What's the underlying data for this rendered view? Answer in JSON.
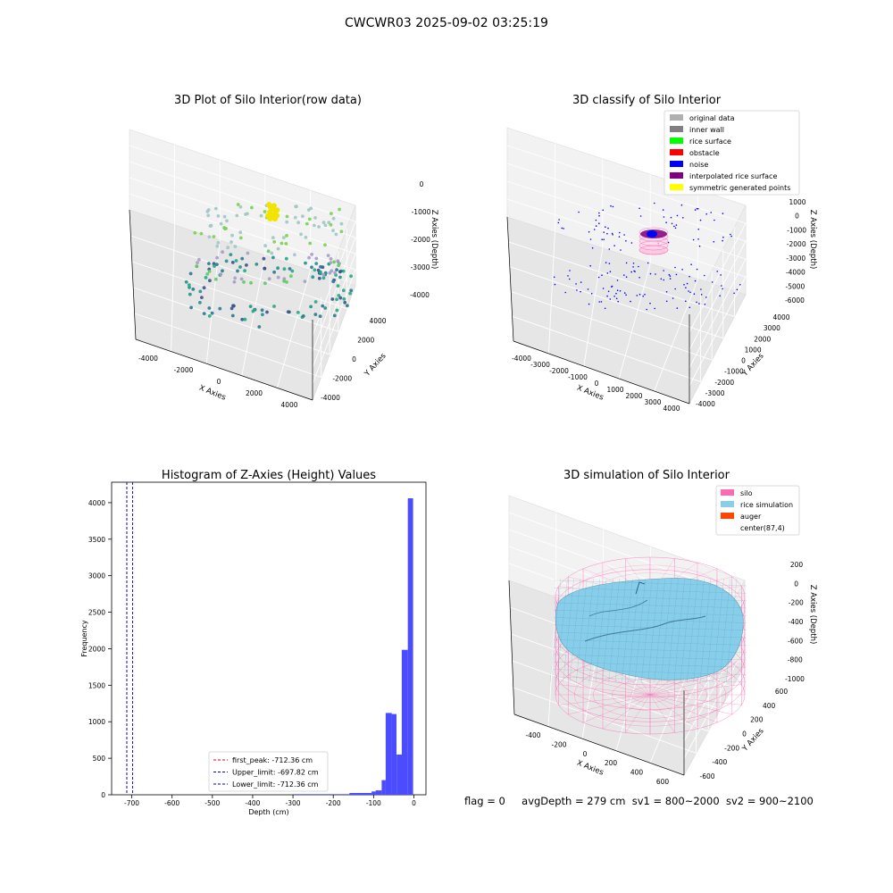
{
  "figure_title": "CWCWR03 2025-09-02 03:25:19",
  "footer": {
    "flag": "flag = 0",
    "avg_depth": "avgDepth = 279 cm",
    "sv1": "sv1 = 800~2000",
    "sv2": "sv2 = 900~2100"
  },
  "colors": {
    "hist_bar": "#4c4cff",
    "first_peak": "#e4001b",
    "limits": "#0000cc",
    "silo": "#ff69b4",
    "rice": "#87ceeb",
    "noise": "#0000ff",
    "interp": "#800080"
  },
  "chart_data": [
    {
      "type": "scatter",
      "projection": "3d",
      "title": "3D Plot of Silo Interior(row data)",
      "xlabel": "X Axies",
      "ylabel": "Y Axies",
      "zlabel": "Z Axies (Depth)",
      "x_ticks": [
        "-4000",
        "-2000",
        "0",
        "2000",
        "4000"
      ],
      "y_ticks": [
        "-4000",
        "-2000",
        "0",
        "2000",
        "4000"
      ],
      "z_ticks": [
        "0",
        "-1000",
        "-2000",
        "-3000",
        "-4000"
      ],
      "xlim": [
        -4500,
        4500
      ],
      "ylim": [
        -4500,
        4500
      ],
      "zlim": [
        -4300,
        200
      ],
      "colormap": "viridis-like (lighter = shallower)",
      "description_points": "approx. 250 points on silo wall and surface"
    },
    {
      "type": "scatter",
      "projection": "3d",
      "title": "3D classify of Silo Interior",
      "xlabel": "X Axies",
      "ylabel": "Y Axies",
      "zlabel": "Z Axies (Depth)",
      "x_ticks": [
        "-4000",
        "-3000",
        "-2000",
        "-1000",
        "0",
        "1000",
        "2000",
        "3000",
        "4000"
      ],
      "y_ticks": [
        "-4000",
        "-3000",
        "-2000",
        "-1000",
        "0",
        "1000",
        "2000",
        "3000",
        "4000"
      ],
      "z_ticks": [
        "1000",
        "0",
        "-1000",
        "-2000",
        "-3000",
        "-4000",
        "-5000",
        "-6000"
      ],
      "legend_position": "upper right",
      "legend": [
        {
          "label": "original data",
          "color": "#b0b0b0"
        },
        {
          "label": "inner wall",
          "color": "#808080"
        },
        {
          "label": "rice surface",
          "color": "#00ff00"
        },
        {
          "label": "obstacle",
          "color": "#ff0000"
        },
        {
          "label": "noise",
          "color": "#0000ff"
        },
        {
          "label": "interpolated rice surface",
          "color": "#800080"
        },
        {
          "label": "symmetric generated points",
          "color": "#ffff00"
        }
      ]
    },
    {
      "type": "bar",
      "title": "Histogram of Z-Axies (Height) Values",
      "xlabel": "Depth (cm)",
      "ylabel": "Frequency",
      "xlim": [
        -750,
        30
      ],
      "ylim": [
        0,
        4280
      ],
      "x_ticks": [
        -700,
        -600,
        -500,
        -400,
        -300,
        -200,
        -100,
        0
      ],
      "y_ticks": [
        0,
        500,
        1000,
        1500,
        2000,
        2500,
        3000,
        3500,
        4000
      ],
      "bins": [
        {
          "x0": -300,
          "x1": -160,
          "count": 8
        },
        {
          "x0": -160,
          "x1": -105,
          "count": 25
        },
        {
          "x0": -105,
          "x1": -95,
          "count": 45
        },
        {
          "x0": -95,
          "x1": -80,
          "count": 60
        },
        {
          "x0": -80,
          "x1": -70,
          "count": 200
        },
        {
          "x0": -70,
          "x1": -55,
          "count": 1120
        },
        {
          "x0": -55,
          "x1": -43,
          "count": 1105
        },
        {
          "x0": -43,
          "x1": -30,
          "count": 550
        },
        {
          "x0": -30,
          "x1": -15,
          "count": 1985
        },
        {
          "x0": -15,
          "x1": -2,
          "count": 4060
        }
      ],
      "vlines": [
        {
          "x": -712.36,
          "label": "first_peak: -712.36 cm",
          "style": "dashed",
          "color": "#e4001b"
        },
        {
          "x": -697.82,
          "label": "Upper_limit: -697.82 cm",
          "style": "dashed",
          "color": "#0000cc"
        },
        {
          "x": -712.36,
          "label": "Lower_limit: -712.36 cm",
          "style": "dashed",
          "color": "#0000cc"
        }
      ],
      "legend_position": "lower center"
    },
    {
      "type": "surface",
      "projection": "3d",
      "title": "3D simulation of Silo Interior",
      "xlabel": "X Axies",
      "ylabel": "Y Axies",
      "zlabel": "Z Axies (Depth)",
      "x_ticks": [
        "-400",
        "-200",
        "0",
        "200",
        "400",
        "600"
      ],
      "y_ticks": [
        "-600",
        "-400",
        "-200",
        "0",
        "200",
        "400",
        "600"
      ],
      "z_ticks": [
        "200",
        "0",
        "-200",
        "-400",
        "-600",
        "-800",
        "-1000"
      ],
      "legend_position": "upper right",
      "legend": [
        {
          "label": "silo",
          "color": "#ff69b4"
        },
        {
          "label": "rice simulation",
          "color": "#87ceeb"
        },
        {
          "label": "auger",
          "color": "#ff4500"
        },
        {
          "label": "center(87,4)",
          "color": "none"
        }
      ]
    }
  ]
}
